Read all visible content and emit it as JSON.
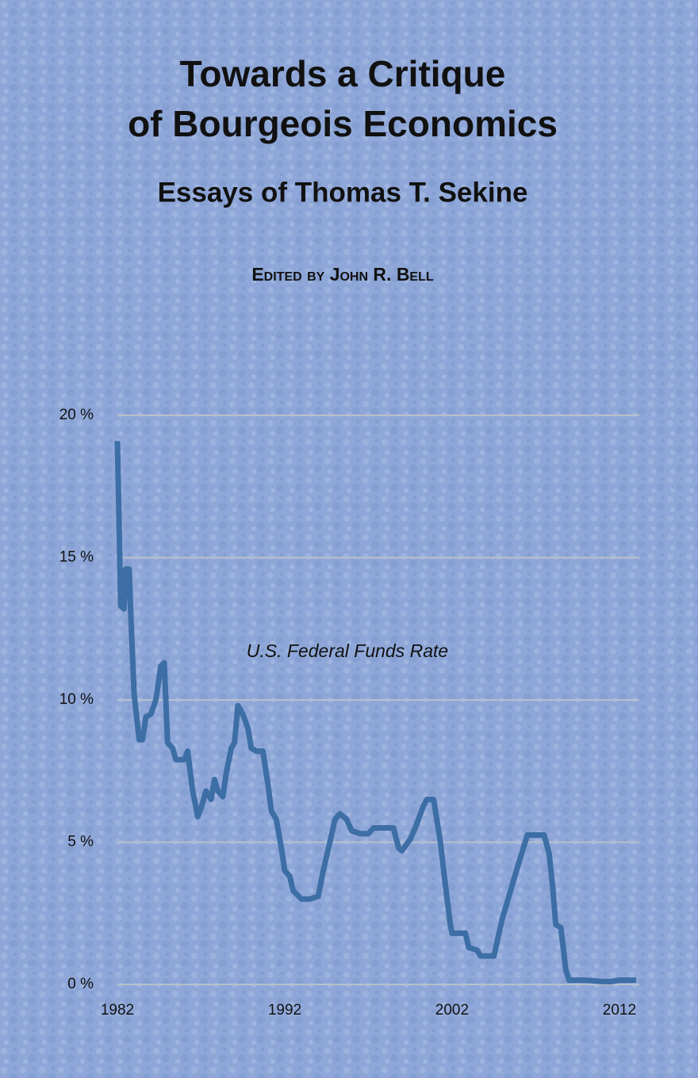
{
  "cover": {
    "title_lines": [
      "Towards a Critique",
      "of Bourgeois Economics"
    ],
    "subtitle": "Essays of Thomas T. Sekine",
    "editor": "Edited by John R. Bell"
  },
  "chart_data": {
    "type": "line",
    "annotation": "U.S. Federal Funds Rate",
    "x": [
      1982.0,
      1982.2,
      1982.4,
      1982.5,
      1982.7,
      1982.8,
      1983.0,
      1983.3,
      1983.5,
      1983.7,
      1984.0,
      1984.3,
      1984.6,
      1984.8,
      1985.0,
      1985.3,
      1985.5,
      1986.0,
      1986.2,
      1986.5,
      1986.8,
      1987.0,
      1987.3,
      1987.6,
      1987.8,
      1988.0,
      1988.3,
      1988.5,
      1988.8,
      1989.0,
      1989.2,
      1989.5,
      1989.8,
      1990.0,
      1990.3,
      1990.7,
      1991.0,
      1991.2,
      1991.5,
      1991.8,
      1992.0,
      1992.3,
      1992.5,
      1993.0,
      1993.5,
      1994.0,
      1994.3,
      1994.7,
      1995.0,
      1995.3,
      1995.7,
      1996.0,
      1996.5,
      1997.0,
      1997.3,
      1998.0,
      1998.5,
      1998.8,
      1999.0,
      1999.5,
      1999.8,
      2000.3,
      2000.5,
      2000.9,
      2001.3,
      2001.6,
      2001.9,
      2002.0,
      2002.8,
      2003.0,
      2003.5,
      2003.7,
      2004.5,
      2005.0,
      2005.5,
      2006.0,
      2006.5,
      2007.5,
      2007.8,
      2008.0,
      2008.2,
      2008.5,
      2008.8,
      2009.0,
      2010.0,
      2011.0,
      2011.5,
      2012.0,
      2013.0
    ],
    "series": [
      {
        "color": "#3d6ea6",
        "values": [
          19.1,
          13.3,
          13.2,
          14.6,
          14.6,
          13.0,
          10.2,
          8.6,
          8.6,
          9.4,
          9.5,
          10.0,
          11.2,
          11.3,
          8.5,
          8.3,
          7.9,
          7.9,
          8.2,
          6.8,
          5.9,
          6.2,
          6.8,
          6.5,
          7.2,
          6.8,
          6.6,
          7.4,
          8.3,
          8.5,
          9.8,
          9.5,
          9.0,
          8.3,
          8.2,
          8.2,
          7.0,
          6.1,
          5.8,
          4.8,
          4.0,
          3.8,
          3.3,
          3.0,
          3.0,
          3.1,
          4.0,
          5.0,
          5.8,
          6.0,
          5.8,
          5.4,
          5.3,
          5.3,
          5.5,
          5.5,
          5.5,
          4.8,
          4.7,
          5.1,
          5.5,
          6.3,
          6.5,
          6.5,
          5.0,
          3.5,
          2.1,
          1.8,
          1.8,
          1.3,
          1.2,
          1.0,
          1.0,
          2.3,
          3.3,
          4.3,
          5.25,
          5.25,
          4.6,
          3.5,
          2.1,
          2.0,
          0.5,
          0.15,
          0.15,
          0.1,
          0.1,
          0.15,
          0.15
        ]
      }
    ],
    "xlim": [
      1982,
      2013
    ],
    "xticks": [
      1982,
      1992,
      2002,
      2012
    ],
    "ylim": [
      0,
      20
    ],
    "yticks": [
      {
        "value": 0,
        "label": "0 %"
      },
      {
        "value": 5,
        "label": "5 %"
      },
      {
        "value": 10,
        "label": "10 %"
      },
      {
        "value": 15,
        "label": "15 %"
      },
      {
        "value": 20,
        "label": "20 %"
      }
    ],
    "grid": true,
    "grid_color": "#b9bfcc"
  }
}
